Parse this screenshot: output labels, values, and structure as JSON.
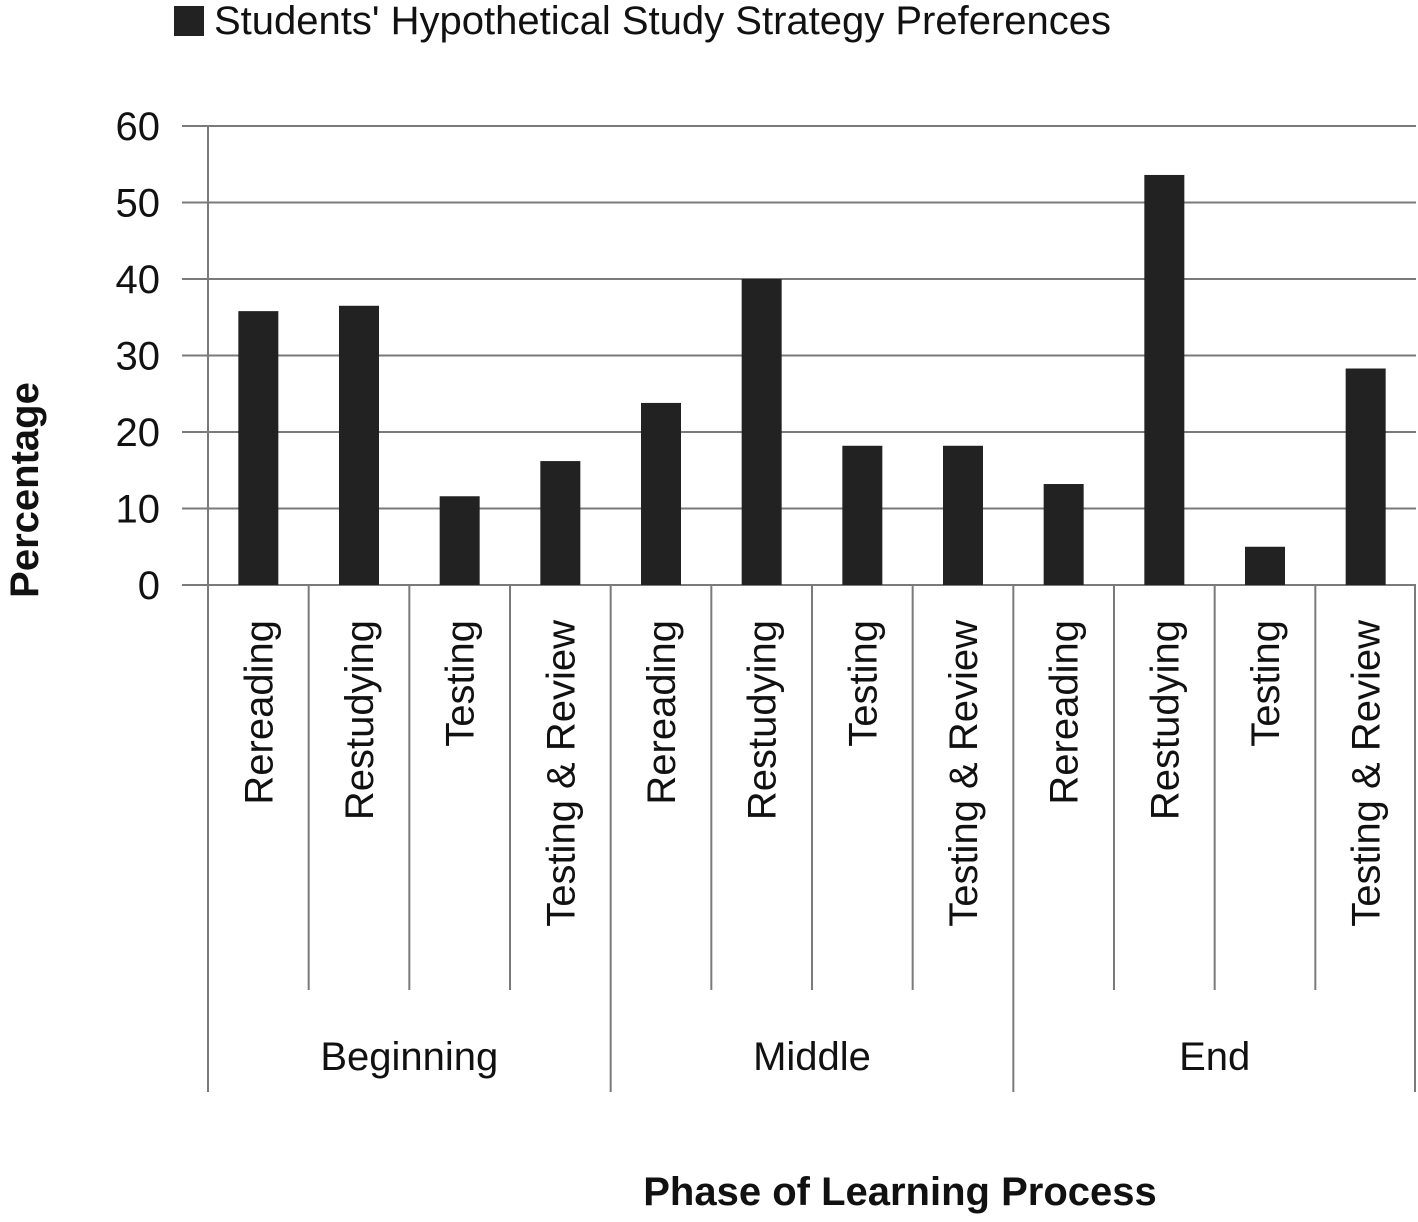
{
  "legend": {
    "label": "Students' Hypothetical Study Strategy Preferences",
    "swatch_color": "#222222"
  },
  "chart_data": {
    "type": "bar",
    "title": "",
    "xlabel": "Phase of Learning Process",
    "ylabel": "Percentage",
    "ylim": [
      0,
      60
    ],
    "yticks": [
      0,
      10,
      20,
      30,
      40,
      50,
      60
    ],
    "grid": true,
    "legend_position": "top",
    "groups": [
      {
        "name": "Beginning",
        "categories": [
          "Rereading",
          "Restudying",
          "Testing",
          "Testing & Review"
        ]
      },
      {
        "name": "Middle",
        "categories": [
          "Rereading",
          "Restudying",
          "Testing",
          "Testing & Review"
        ]
      },
      {
        "name": "End",
        "categories": [
          "Rereading",
          "Restudying",
          "Testing",
          "Testing & Review"
        ]
      }
    ],
    "series": [
      {
        "name": "Students' Hypothetical Study Strategy Preferences",
        "color": "#222222",
        "values": [
          35.8,
          36.5,
          11.6,
          16.2,
          23.8,
          40.0,
          18.2,
          18.2,
          13.2,
          53.6,
          5.0,
          28.3
        ]
      }
    ]
  }
}
